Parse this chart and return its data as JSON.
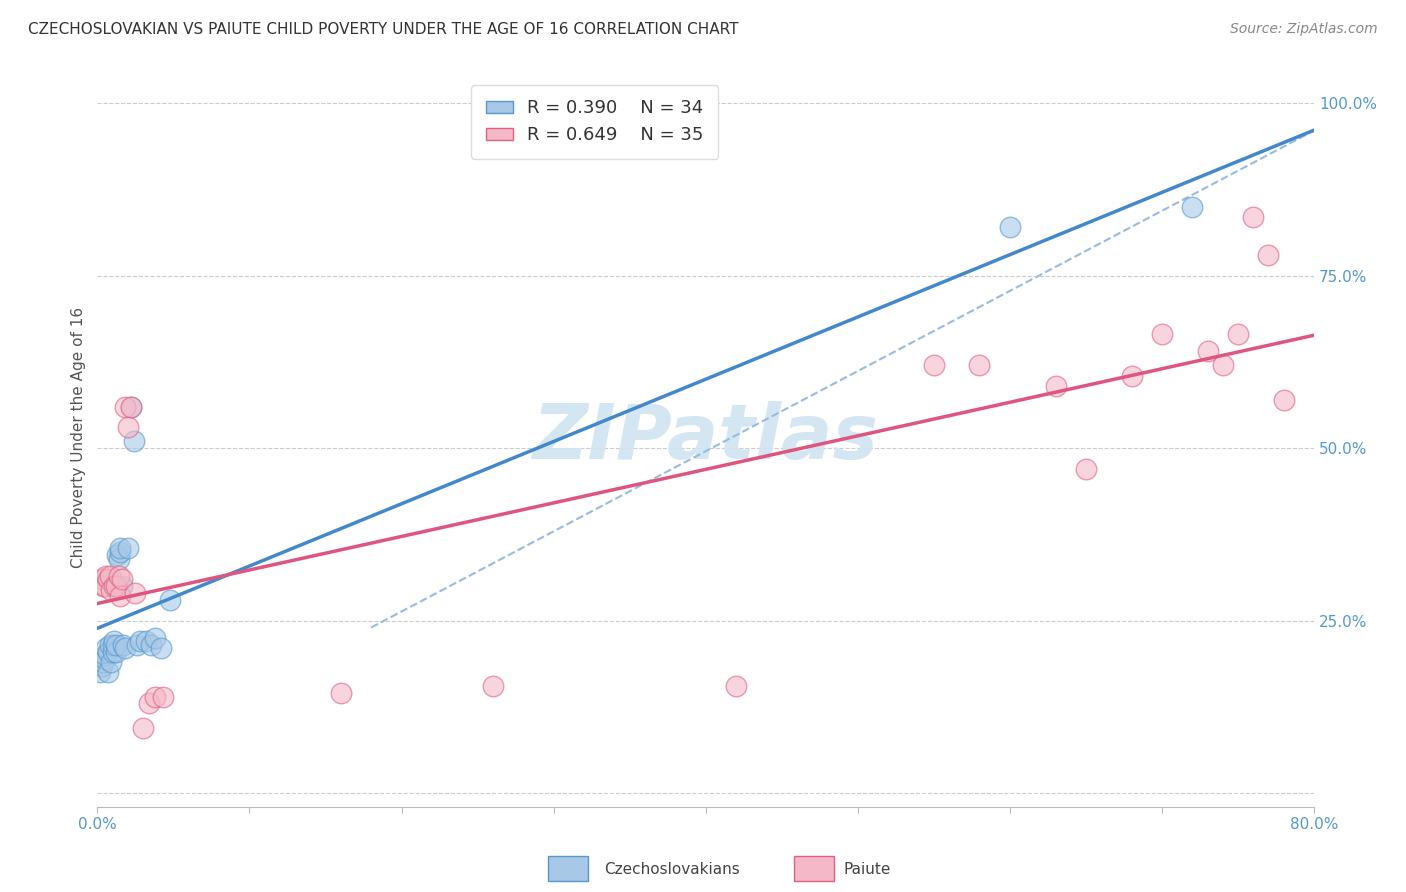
{
  "title": "CZECHOSLOVAKIAN VS PAIUTE CHILD POVERTY UNDER THE AGE OF 16 CORRELATION CHART",
  "source": "Source: ZipAtlas.com",
  "ylabel": "Child Poverty Under the Age of 16",
  "xlim": [
    0.0,
    0.8
  ],
  "ylim": [
    -0.02,
    1.05
  ],
  "xticks": [
    0.0,
    0.1,
    0.2,
    0.3,
    0.4,
    0.5,
    0.6,
    0.7,
    0.8
  ],
  "xticklabels": [
    "0.0%",
    "",
    "",
    "",
    "",
    "",
    "",
    "",
    "80.0%"
  ],
  "yticks": [
    0.0,
    0.25,
    0.5,
    0.75,
    1.0
  ],
  "yticklabels": [
    "",
    "25.0%",
    "50.0%",
    "75.0%",
    "100.0%"
  ],
  "legend_r1": "R = 0.390",
  "legend_n1": "N = 34",
  "legend_r2": "R = 0.649",
  "legend_n2": "N = 35",
  "blue_scatter_color": "#a8c8e8",
  "blue_edge_color": "#5599cc",
  "pink_scatter_color": "#f4b8c8",
  "pink_edge_color": "#e06080",
  "blue_line_color": "#4488cc",
  "pink_line_color": "#e05580",
  "dashed_line_color": "#99bbdd",
  "watermark_color": "#d0e4f0",
  "watermark": "ZIPatlas",
  "czech_x": [
    0.002,
    0.003,
    0.004,
    0.005,
    0.005,
    0.006,
    0.007,
    0.007,
    0.008,
    0.009,
    0.01,
    0.01,
    0.011,
    0.012,
    0.012,
    0.013,
    0.014,
    0.015,
    0.015,
    0.016,
    0.017,
    0.018,
    0.02,
    0.022,
    0.024,
    0.026,
    0.028,
    0.032,
    0.035,
    0.038,
    0.042,
    0.048,
    0.6,
    0.72
  ],
  "czech_y": [
    0.175,
    0.185,
    0.19,
    0.195,
    0.2,
    0.21,
    0.175,
    0.205,
    0.215,
    0.19,
    0.205,
    0.215,
    0.22,
    0.205,
    0.215,
    0.345,
    0.34,
    0.35,
    0.355,
    0.3,
    0.215,
    0.21,
    0.355,
    0.56,
    0.51,
    0.215,
    0.22,
    0.22,
    0.215,
    0.225,
    0.21,
    0.28,
    0.82,
    0.85
  ],
  "paiute_x": [
    0.003,
    0.004,
    0.005,
    0.006,
    0.007,
    0.008,
    0.009,
    0.011,
    0.012,
    0.014,
    0.015,
    0.016,
    0.018,
    0.02,
    0.022,
    0.025,
    0.03,
    0.034,
    0.038,
    0.043,
    0.16,
    0.26,
    0.42,
    0.55,
    0.58,
    0.63,
    0.65,
    0.68,
    0.7,
    0.73,
    0.74,
    0.75,
    0.76,
    0.77,
    0.78
  ],
  "paiute_y": [
    0.31,
    0.3,
    0.3,
    0.315,
    0.31,
    0.315,
    0.295,
    0.3,
    0.3,
    0.315,
    0.285,
    0.31,
    0.56,
    0.53,
    0.56,
    0.29,
    0.095,
    0.13,
    0.14,
    0.14,
    0.145,
    0.155,
    0.155,
    0.62,
    0.62,
    0.59,
    0.47,
    0.605,
    0.665,
    0.64,
    0.62,
    0.665,
    0.835,
    0.78,
    0.57
  ],
  "title_fontsize": 11,
  "source_fontsize": 10,
  "tick_fontsize": 11,
  "legend_fontsize": 13,
  "ylabel_fontsize": 11
}
